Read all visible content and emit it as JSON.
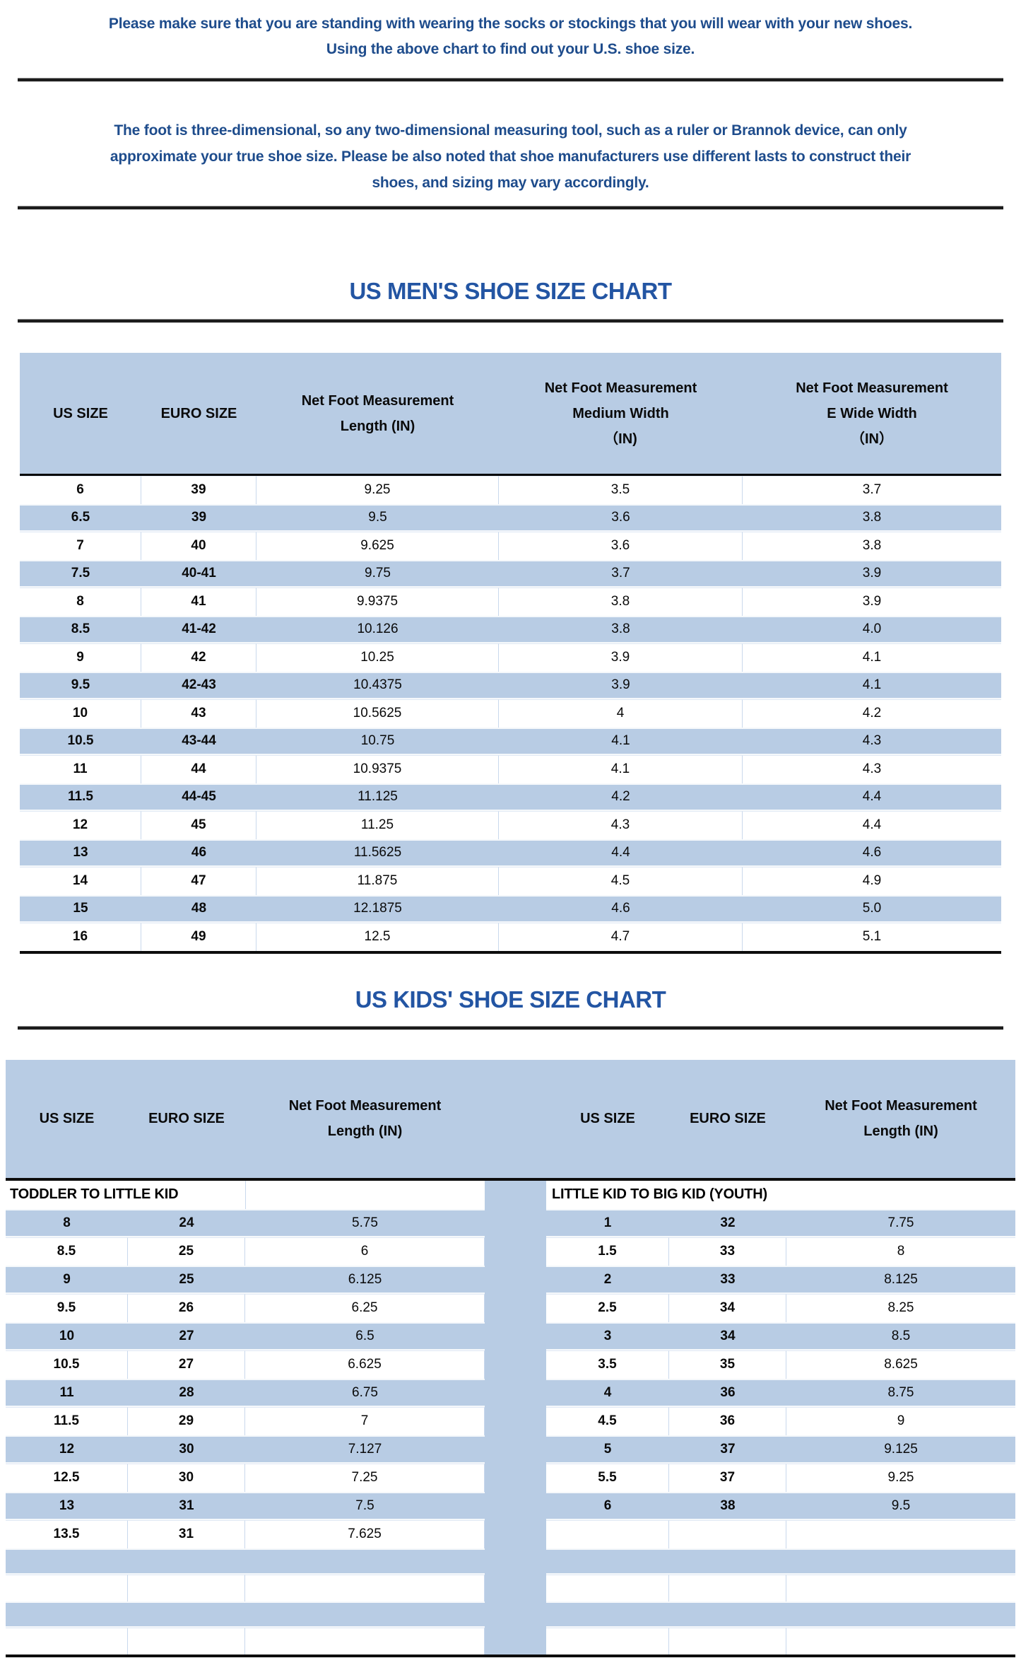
{
  "colors": {
    "accent_blue": "#b8cce4",
    "title_blue": "#2355a3",
    "paragraph_blue": "#1e4c8c",
    "line_black": "#1b1b1b"
  },
  "intro": {
    "paragraph1_lines": [
      "Please make sure that you are standing with wearing the socks or stockings that you will wear with your new shoes.",
      "Using the above chart to find out your U.S. shoe size."
    ],
    "paragraph2_lines": [
      "The foot is three-dimensional, so any two-dimensional measuring tool, such as a ruler or Brannok device, can only",
      "approximate your true shoe size. Please be also noted that shoe manufacturers use different lasts to construct their",
      "shoes, and sizing may vary accordingly."
    ]
  },
  "mens_chart": {
    "title": "US MEN'S SHOE SIZE CHART",
    "columns": [
      {
        "lines": [
          "US SIZE"
        ]
      },
      {
        "lines": [
          "EURO SIZE"
        ]
      },
      {
        "lines": [
          "Net Foot Measurement",
          "Length (IN)"
        ]
      },
      {
        "lines": [
          "Net Foot Measurement",
          "Medium Width",
          "（IN)"
        ]
      },
      {
        "lines": [
          "Net Foot Measurement",
          "E Wide Width",
          "（IN）"
        ]
      }
    ],
    "rows": [
      [
        "6",
        "39",
        "9.25",
        "3.5",
        "3.7"
      ],
      [
        "6.5",
        "39",
        "9.5",
        "3.6",
        "3.8"
      ],
      [
        "7",
        "40",
        "9.625",
        "3.6",
        "3.8"
      ],
      [
        "7.5",
        "40-41",
        "9.75",
        "3.7",
        "3.9"
      ],
      [
        "8",
        "41",
        "9.9375",
        "3.8",
        "3.9"
      ],
      [
        "8.5",
        "41-42",
        "10.126",
        "3.8",
        "4.0"
      ],
      [
        "9",
        "42",
        "10.25",
        "3.9",
        "4.1"
      ],
      [
        "9.5",
        "42-43",
        "10.4375",
        "3.9",
        "4.1"
      ],
      [
        "10",
        "43",
        "10.5625",
        "4",
        "4.2"
      ],
      [
        "10.5",
        "43-44",
        "10.75",
        "4.1",
        "4.3"
      ],
      [
        "11",
        "44",
        "10.9375",
        "4.1",
        "4.3"
      ],
      [
        "11.5",
        "44-45",
        "11.125",
        "4.2",
        "4.4"
      ],
      [
        "12",
        "45",
        "11.25",
        "4.3",
        "4.4"
      ],
      [
        "13",
        "46",
        "11.5625",
        "4.4",
        "4.6"
      ],
      [
        "14",
        "47",
        "11.875",
        "4.5",
        "4.9"
      ],
      [
        "15",
        "48",
        "12.1875",
        "4.6",
        "5.0"
      ],
      [
        "16",
        "49",
        "12.5",
        "4.7",
        "5.1"
      ]
    ]
  },
  "kids_chart": {
    "title": "US KIDS' SHOE SIZE CHART",
    "columns_left": [
      {
        "lines": [
          "US SIZE"
        ]
      },
      {
        "lines": [
          "EURO SIZE"
        ]
      },
      {
        "lines": [
          "Net Foot Measurement",
          "Length (IN)"
        ]
      }
    ],
    "columns_right": [
      {
        "lines": [
          "US SIZE"
        ]
      },
      {
        "lines": [
          "EURO SIZE"
        ]
      },
      {
        "lines": [
          "Net Foot Measurement",
          "Length (IN)"
        ]
      }
    ],
    "section_left": "TODDLER TO LITTLE KID",
    "section_right": "LITTLE KID TO BIG KID (YOUTH)",
    "rows_left": [
      [
        "8",
        "24",
        "5.75"
      ],
      [
        "8.5",
        "25",
        "6"
      ],
      [
        "9",
        "25",
        "6.125"
      ],
      [
        "9.5",
        "26",
        "6.25"
      ],
      [
        "10",
        "27",
        "6.5"
      ],
      [
        "10.5",
        "27",
        "6.625"
      ],
      [
        "11",
        "28",
        "6.75"
      ],
      [
        "11.5",
        "29",
        "7"
      ],
      [
        "12",
        "30",
        "7.127"
      ],
      [
        "12.5",
        "30",
        "7.25"
      ],
      [
        "13",
        "31",
        "7.5"
      ],
      [
        "13.5",
        "31",
        "7.625"
      ]
    ],
    "rows_right": [
      [
        "1",
        "32",
        "7.75"
      ],
      [
        "1.5",
        "33",
        "8"
      ],
      [
        "2",
        "33",
        "8.125"
      ],
      [
        "2.5",
        "34",
        "8.25"
      ],
      [
        "3",
        "34",
        "8.5"
      ],
      [
        "3.5",
        "35",
        "8.625"
      ],
      [
        "4",
        "36",
        "8.75"
      ],
      [
        "4.5",
        "36",
        "9"
      ],
      [
        "5",
        "37",
        "9.125"
      ],
      [
        "5.5",
        "37",
        "9.25"
      ],
      [
        "6",
        "38",
        "9.5"
      ],
      [
        "",
        "",
        ""
      ]
    ],
    "trailing_empty_rows": 4
  }
}
